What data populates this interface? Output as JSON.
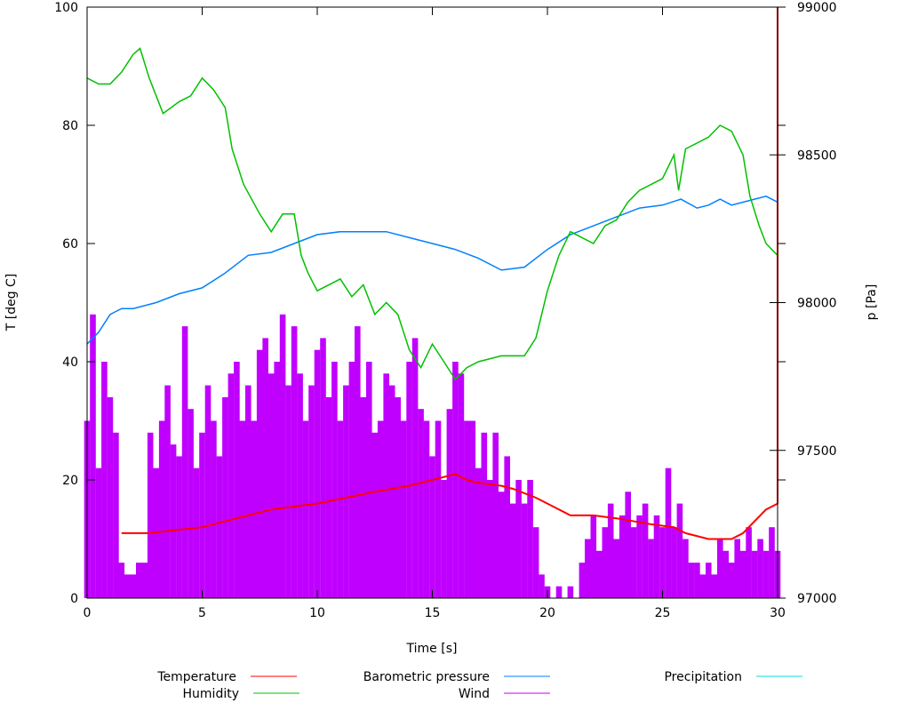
{
  "chart_data": {
    "type": "line",
    "xlabel": "Time [s]",
    "ylabel": "T [deg C]",
    "y2label": "p [Pa]",
    "xlim": [
      0,
      30
    ],
    "ylim": [
      0,
      100
    ],
    "y2lim": [
      97000,
      99000
    ],
    "xticks": [
      "0",
      "5",
      "10",
      "15",
      "20",
      "25",
      "30"
    ],
    "yticks": [
      "0",
      "20",
      "40",
      "60",
      "80",
      "100"
    ],
    "y2ticks": [
      "97000",
      "97500",
      "98000",
      "98500",
      "99000"
    ],
    "grid": false,
    "legend_position": "bottom",
    "colors": {
      "Temperature": "#ff0000",
      "Humidity": "#00c000",
      "Barometric pressure": "#0080ff",
      "Wind": "#c000ff",
      "Precipitation": "#00e0e0"
    },
    "series": [
      {
        "name": "Temperature",
        "axis": "left",
        "points": [
          [
            1.5,
            11
          ],
          [
            2.7,
            11
          ],
          [
            5,
            12
          ],
          [
            7,
            14
          ],
          [
            8,
            15
          ],
          [
            10,
            16
          ],
          [
            12.5,
            18
          ],
          [
            14,
            19
          ],
          [
            15,
            20
          ],
          [
            16,
            21
          ],
          [
            16.5,
            20
          ],
          [
            17,
            19.5
          ],
          [
            18,
            19
          ],
          [
            18.5,
            18.5
          ],
          [
            19.5,
            17
          ],
          [
            20,
            16
          ],
          [
            21,
            14
          ],
          [
            22,
            14
          ],
          [
            23,
            13.5
          ],
          [
            24.5,
            12.5
          ],
          [
            25.5,
            12
          ],
          [
            26,
            11
          ],
          [
            27,
            10
          ],
          [
            28,
            10
          ],
          [
            28.5,
            11
          ],
          [
            29,
            13
          ],
          [
            29.5,
            15
          ],
          [
            30,
            16
          ],
          [
            30,
            100
          ]
        ]
      },
      {
        "name": "Humidity",
        "axis": "left",
        "points": [
          [
            0,
            88
          ],
          [
            0.5,
            87
          ],
          [
            1,
            87
          ],
          [
            1.5,
            89
          ],
          [
            2,
            92
          ],
          [
            2.3,
            93
          ],
          [
            2.7,
            88
          ],
          [
            3.3,
            82
          ],
          [
            4,
            84
          ],
          [
            4.5,
            85
          ],
          [
            5,
            88
          ],
          [
            5.5,
            86
          ],
          [
            6,
            83
          ],
          [
            6.3,
            76
          ],
          [
            6.8,
            70
          ],
          [
            7.5,
            65
          ],
          [
            8,
            62
          ],
          [
            8.5,
            65
          ],
          [
            9,
            65
          ],
          [
            9.3,
            58
          ],
          [
            9.6,
            55
          ],
          [
            10,
            52
          ],
          [
            11,
            54
          ],
          [
            11.5,
            51
          ],
          [
            12,
            53
          ],
          [
            12.5,
            48
          ],
          [
            13,
            50
          ],
          [
            13.5,
            48
          ],
          [
            14,
            42
          ],
          [
            14.5,
            39
          ],
          [
            15,
            43
          ],
          [
            15.5,
            40
          ],
          [
            16,
            37
          ],
          [
            16.5,
            39
          ],
          [
            17,
            40
          ],
          [
            18,
            41
          ],
          [
            19,
            41
          ],
          [
            19.5,
            44
          ],
          [
            20,
            52
          ],
          [
            20.5,
            58
          ],
          [
            21,
            62
          ],
          [
            22,
            60
          ],
          [
            22.5,
            63
          ],
          [
            23,
            64
          ],
          [
            23.5,
            67
          ],
          [
            24,
            69
          ],
          [
            25,
            71
          ],
          [
            25.5,
            75
          ],
          [
            25.7,
            69
          ],
          [
            26,
            76
          ],
          [
            27,
            78
          ],
          [
            27.5,
            80
          ],
          [
            28,
            79
          ],
          [
            28.5,
            75
          ],
          [
            28.8,
            68
          ],
          [
            29.2,
            63
          ],
          [
            29.5,
            60
          ],
          [
            30,
            58
          ]
        ]
      },
      {
        "name": "Barometric pressure",
        "axis": "right",
        "points": [
          [
            0,
            97860
          ],
          [
            0.5,
            97900
          ],
          [
            1,
            97960
          ],
          [
            1.5,
            97980
          ],
          [
            2,
            97980
          ],
          [
            3,
            98000
          ],
          [
            4,
            98030
          ],
          [
            5,
            98050
          ],
          [
            6,
            98100
          ],
          [
            7,
            98160
          ],
          [
            8,
            98170
          ],
          [
            9,
            98200
          ],
          [
            10,
            98230
          ],
          [
            11,
            98240
          ],
          [
            12,
            98240
          ],
          [
            13,
            98240
          ],
          [
            14,
            98220
          ],
          [
            15,
            98200
          ],
          [
            16,
            98180
          ],
          [
            17,
            98150
          ],
          [
            18,
            98110
          ],
          [
            19,
            98120
          ],
          [
            20,
            98180
          ],
          [
            21,
            98230
          ],
          [
            22,
            98260
          ],
          [
            23,
            98290
          ],
          [
            24,
            98320
          ],
          [
            25,
            98330
          ],
          [
            25.8,
            98350
          ],
          [
            26.5,
            98320
          ],
          [
            27,
            98330
          ],
          [
            27.5,
            98350
          ],
          [
            28,
            98330
          ],
          [
            29,
            98350
          ],
          [
            29.5,
            98360
          ],
          [
            30,
            98340
          ]
        ]
      },
      {
        "name": "Wind",
        "axis": "left",
        "style": "impulses",
        "points": [
          [
            0,
            30
          ],
          [
            0.25,
            48
          ],
          [
            0.5,
            22
          ],
          [
            0.75,
            40
          ],
          [
            1,
            34
          ],
          [
            1.25,
            28
          ],
          [
            1.5,
            6
          ],
          [
            1.75,
            4
          ],
          [
            2,
            4
          ],
          [
            2.25,
            6
          ],
          [
            2.5,
            6
          ],
          [
            2.75,
            28
          ],
          [
            3,
            22
          ],
          [
            3.25,
            30
          ],
          [
            3.5,
            36
          ],
          [
            3.75,
            26
          ],
          [
            4,
            24
          ],
          [
            4.25,
            46
          ],
          [
            4.5,
            32
          ],
          [
            4.75,
            22
          ],
          [
            5,
            28
          ],
          [
            5.25,
            36
          ],
          [
            5.5,
            30
          ],
          [
            5.75,
            24
          ],
          [
            6,
            34
          ],
          [
            6.25,
            38
          ],
          [
            6.5,
            40
          ],
          [
            6.75,
            30
          ],
          [
            7,
            36
          ],
          [
            7.25,
            30
          ],
          [
            7.5,
            42
          ],
          [
            7.75,
            44
          ],
          [
            8,
            38
          ],
          [
            8.25,
            40
          ],
          [
            8.5,
            48
          ],
          [
            8.75,
            36
          ],
          [
            9,
            46
          ],
          [
            9.25,
            38
          ],
          [
            9.5,
            30
          ],
          [
            9.75,
            36
          ],
          [
            10,
            42
          ],
          [
            10.25,
            44
          ],
          [
            10.5,
            34
          ],
          [
            10.75,
            40
          ],
          [
            11,
            30
          ],
          [
            11.25,
            36
          ],
          [
            11.5,
            40
          ],
          [
            11.75,
            46
          ],
          [
            12,
            34
          ],
          [
            12.25,
            40
          ],
          [
            12.5,
            28
          ],
          [
            12.75,
            30
          ],
          [
            13,
            38
          ],
          [
            13.25,
            36
          ],
          [
            13.5,
            34
          ],
          [
            13.75,
            30
          ],
          [
            14,
            40
          ],
          [
            14.25,
            44
          ],
          [
            14.5,
            32
          ],
          [
            14.75,
            30
          ],
          [
            15,
            24
          ],
          [
            15.25,
            30
          ],
          [
            15.5,
            20
          ],
          [
            15.75,
            32
          ],
          [
            16,
            40
          ],
          [
            16.25,
            38
          ],
          [
            16.5,
            30
          ],
          [
            16.75,
            30
          ],
          [
            17,
            22
          ],
          [
            17.25,
            28
          ],
          [
            17.5,
            20
          ],
          [
            17.75,
            28
          ],
          [
            18,
            18
          ],
          [
            18.25,
            24
          ],
          [
            18.5,
            16
          ],
          [
            18.75,
            20
          ],
          [
            19,
            16
          ],
          [
            19.25,
            20
          ],
          [
            19.5,
            12
          ],
          [
            19.75,
            4
          ],
          [
            20,
            2
          ],
          [
            20.25,
            0
          ],
          [
            20.5,
            2
          ],
          [
            20.75,
            0
          ],
          [
            21,
            2
          ],
          [
            21.25,
            0
          ],
          [
            21.5,
            6
          ],
          [
            21.75,
            10
          ],
          [
            22,
            14
          ],
          [
            22.25,
            8
          ],
          [
            22.5,
            12
          ],
          [
            22.75,
            16
          ],
          [
            23,
            10
          ],
          [
            23.25,
            14
          ],
          [
            23.5,
            18
          ],
          [
            23.75,
            12
          ],
          [
            24,
            14
          ],
          [
            24.25,
            16
          ],
          [
            24.5,
            10
          ],
          [
            24.75,
            14
          ],
          [
            25,
            12
          ],
          [
            25.25,
            22
          ],
          [
            25.5,
            12
          ],
          [
            25.75,
            16
          ],
          [
            26,
            10
          ],
          [
            26.25,
            6
          ],
          [
            26.5,
            6
          ],
          [
            26.75,
            4
          ],
          [
            27,
            6
          ],
          [
            27.25,
            4
          ],
          [
            27.5,
            10
          ],
          [
            27.75,
            8
          ],
          [
            28,
            6
          ],
          [
            28.25,
            10
          ],
          [
            28.5,
            8
          ],
          [
            28.75,
            12
          ],
          [
            29,
            8
          ],
          [
            29.25,
            10
          ],
          [
            29.5,
            8
          ],
          [
            29.75,
            12
          ],
          [
            30,
            8
          ]
        ]
      },
      {
        "name": "Precipitation",
        "axis": "left",
        "points": []
      }
    ]
  }
}
